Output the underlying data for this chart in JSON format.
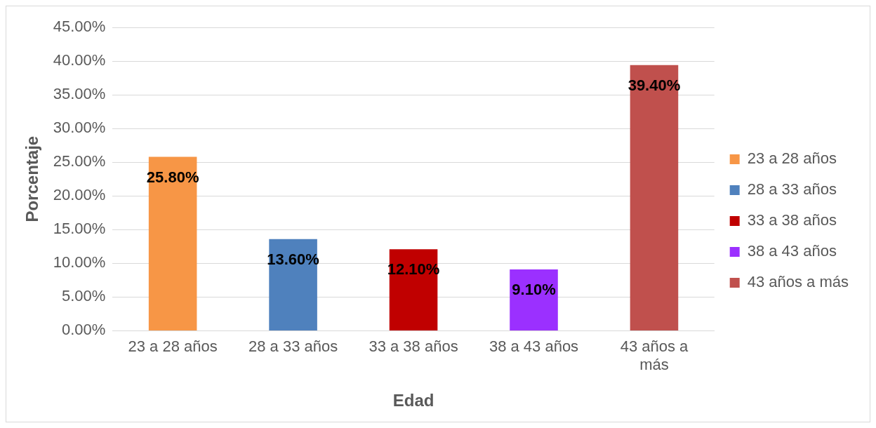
{
  "chart_data": {
    "type": "bar",
    "xlabel": "Edad",
    "ylabel": "Porcentaje",
    "categories": [
      "23 a 28 años",
      "28 a 33 años",
      "33 a 38 años",
      "38 a 43 años",
      "43 años a más"
    ],
    "series": [
      {
        "name": "23 a 28 años",
        "color": "#f79646",
        "values": [
          25.8,
          null,
          null,
          null,
          null
        ],
        "value_labels": [
          "25.80%",
          null,
          null,
          null,
          null
        ]
      },
      {
        "name": "28 a 33 años",
        "color": "#4f81bd",
        "values": [
          null,
          13.6,
          null,
          null,
          null
        ],
        "value_labels": [
          null,
          "13.60%",
          null,
          null,
          null
        ]
      },
      {
        "name": "33 a 38 años",
        "color": "#c00000",
        "values": [
          null,
          null,
          12.1,
          null,
          null
        ],
        "value_labels": [
          null,
          null,
          "12.10%",
          null,
          null
        ]
      },
      {
        "name": "38 a 43 años",
        "color": "#9b30ff",
        "values": [
          null,
          null,
          null,
          9.1,
          null
        ],
        "value_labels": [
          null,
          null,
          null,
          "9.10%",
          null
        ]
      },
      {
        "name": "43 años a más",
        "color": "#c0504d",
        "values": [
          null,
          null,
          null,
          null,
          39.4
        ],
        "value_labels": [
          null,
          null,
          null,
          null,
          "39.40%"
        ]
      }
    ],
    "ylim": [
      0,
      45
    ],
    "yticks": [
      {
        "value": 0,
        "label": "0.00%"
      },
      {
        "value": 5,
        "label": "5.00%"
      },
      {
        "value": 10,
        "label": "10.00%"
      },
      {
        "value": 15,
        "label": "15.00%"
      },
      {
        "value": 20,
        "label": "20.00%"
      },
      {
        "value": 25,
        "label": "25.00%"
      },
      {
        "value": 30,
        "label": "30.00%"
      },
      {
        "value": 35,
        "label": "35.00%"
      },
      {
        "value": 40,
        "label": "40.00%"
      },
      {
        "value": 45,
        "label": "45.00%"
      }
    ],
    "grid": "y",
    "legend": "right"
  }
}
